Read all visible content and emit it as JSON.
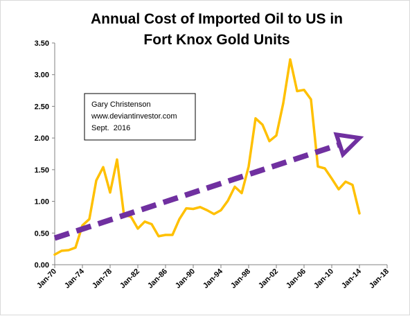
{
  "chart_data": {
    "type": "line",
    "title": [
      "Annual Cost of Imported Oil to US in",
      "Fort Knox Gold Units"
    ],
    "xlabel": "",
    "ylabel": "",
    "ylim": [
      0,
      3.5
    ],
    "yticks": [
      "0.00",
      "0.50",
      "1.00",
      "1.50",
      "2.00",
      "2.50",
      "3.00",
      "3.50"
    ],
    "xticks": [
      "Jan-70",
      "Jan-74",
      "Jan-78",
      "Jan-82",
      "Jan-86",
      "Jan-90",
      "Jan-94",
      "Jan-98",
      "Jan-02",
      "Jan-06",
      "Jan-10",
      "Jan-14",
      "Jan-18"
    ],
    "xlim": [
      1970,
      2018
    ],
    "grid": false,
    "legend": "none",
    "series": [
      {
        "color": "#FFC000",
        "x": [
          1970,
          1971,
          1972,
          1973,
          1974,
          1975,
          1976,
          1977,
          1978,
          1979,
          1980,
          1981,
          1982,
          1983,
          1984,
          1985,
          1986,
          1987,
          1988,
          1989,
          1990,
          1991,
          1992,
          1993,
          1994,
          1995,
          1996,
          1997,
          1998,
          1999,
          2000,
          2001,
          2002,
          2003,
          2004,
          2005,
          2006,
          2007,
          2008,
          2009,
          2010,
          2011,
          2012,
          2013,
          2014,
          2015,
          2016
        ],
        "values": [
          0.16,
          0.22,
          0.23,
          0.27,
          0.62,
          0.72,
          1.33,
          1.54,
          1.14,
          1.66,
          0.78,
          0.76,
          0.57,
          0.68,
          0.64,
          0.45,
          0.47,
          0.47,
          0.72,
          0.89,
          0.88,
          0.91,
          0.86,
          0.8,
          0.86,
          1.01,
          1.23,
          1.13,
          1.55,
          2.31,
          2.21,
          1.95,
          2.04,
          2.55,
          3.24,
          2.74,
          2.76,
          2.61,
          1.55,
          1.52,
          1.36,
          1.19,
          1.31,
          1.26,
          0.81,
          null,
          null
        ]
      }
    ],
    "trend_arrow": {
      "color": "#7030A0",
      "style": "dashed",
      "x": [
        1970,
        2014
      ],
      "values": [
        0.42,
        2.0
      ]
    },
    "annotation": {
      "lines": [
        "Gary Christenson",
        "www.deviantinvestor.com",
        "Sept.  2016"
      ]
    }
  }
}
